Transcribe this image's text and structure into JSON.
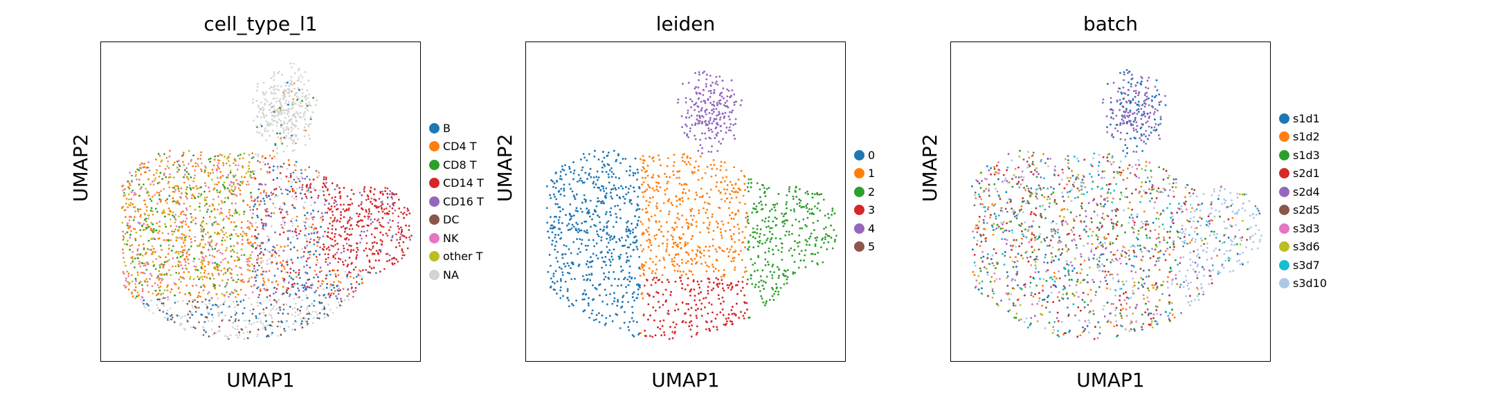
{
  "chart_data": [
    {
      "type": "scatter",
      "title": "cell_type_l1",
      "xlabel": "UMAP1",
      "ylabel": "UMAP2",
      "ticks": "none",
      "legend_placement": "right",
      "categories": [
        "B",
        "CD4 T",
        "CD8 T",
        "CD14 T",
        "CD16 T",
        "DC",
        "NK",
        "other T",
        "NA"
      ],
      "colors": [
        "#1f77b4",
        "#ff7f0e",
        "#2ca02c",
        "#d62728",
        "#9467bd",
        "#8c564b",
        "#e377c2",
        "#bcbd22",
        "#d3d3d3"
      ]
    },
    {
      "type": "scatter",
      "title": "leiden",
      "xlabel": "UMAP1",
      "ylabel": "UMAP2",
      "ticks": "none",
      "legend_placement": "right",
      "categories": [
        "0",
        "1",
        "2",
        "3",
        "4",
        "5"
      ],
      "colors": [
        "#1f77b4",
        "#ff7f0e",
        "#2ca02c",
        "#d62728",
        "#9467bd",
        "#8c564b"
      ]
    },
    {
      "type": "scatter",
      "title": "batch",
      "xlabel": "UMAP1",
      "ylabel": "UMAP2",
      "ticks": "none",
      "legend_placement": "right",
      "categories": [
        "s1d1",
        "s1d2",
        "s1d3",
        "s2d1",
        "s2d4",
        "s2d5",
        "s3d3",
        "s3d6",
        "s3d7",
        "s3d10"
      ],
      "colors": [
        "#1f77b4",
        "#ff7f0e",
        "#2ca02c",
        "#d62728",
        "#9467bd",
        "#8c564b",
        "#e377c2",
        "#bcbd22",
        "#17becf",
        "#aec7e8"
      ]
    }
  ]
}
